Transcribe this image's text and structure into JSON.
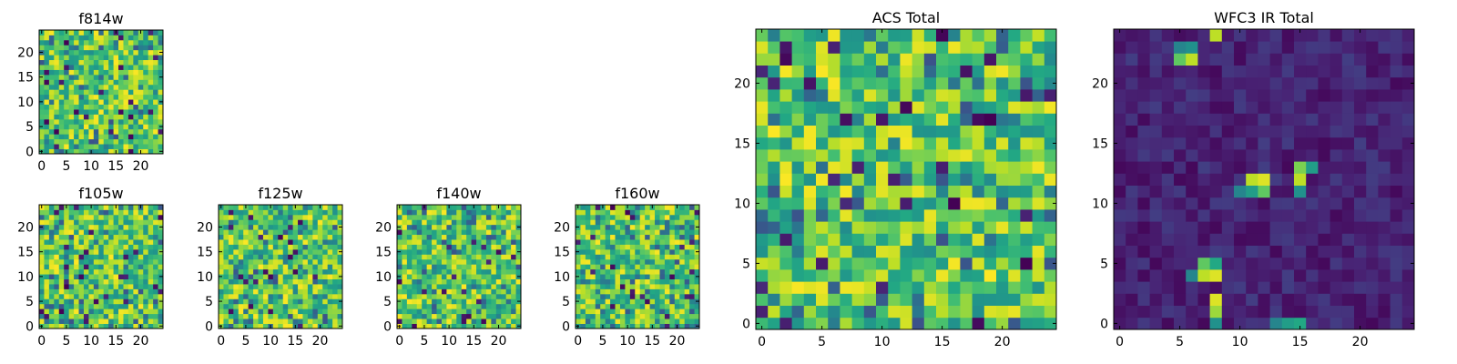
{
  "chart_data": [
    {
      "type": "heatmap",
      "title": "f814w",
      "xticks": [
        "0",
        "5",
        "10",
        "15",
        "20"
      ],
      "yticks": [
        "0",
        "5",
        "10",
        "15",
        "20"
      ],
      "range": [
        0,
        24
      ],
      "colormap": "viridis",
      "style": "mid",
      "seed": 11
    },
    {
      "type": "heatmap",
      "title": "f105w",
      "xticks": [
        "0",
        "5",
        "10",
        "15",
        "20"
      ],
      "yticks": [
        "0",
        "5",
        "10",
        "15",
        "20"
      ],
      "range": [
        0,
        24
      ],
      "colormap": "viridis",
      "style": "mid",
      "seed": 23
    },
    {
      "type": "heatmap",
      "title": "f125w",
      "xticks": [
        "0",
        "5",
        "10",
        "15",
        "20"
      ],
      "yticks": [
        "0",
        "5",
        "10",
        "15",
        "20"
      ],
      "range": [
        0,
        24
      ],
      "colormap": "viridis",
      "style": "mid",
      "seed": 37
    },
    {
      "type": "heatmap",
      "title": "f140w",
      "xticks": [
        "0",
        "5",
        "10",
        "15",
        "20"
      ],
      "yticks": [
        "0",
        "5",
        "10",
        "15",
        "20"
      ],
      "range": [
        0,
        24
      ],
      "colormap": "viridis",
      "style": "mid",
      "seed": 41
    },
    {
      "type": "heatmap",
      "title": "f160w",
      "xticks": [
        "0",
        "5",
        "10",
        "15",
        "20"
      ],
      "yticks": [
        "0",
        "5",
        "10",
        "15",
        "20"
      ],
      "range": [
        0,
        24
      ],
      "colormap": "viridis",
      "style": "mid",
      "seed": 53
    },
    {
      "type": "heatmap",
      "title": "ACS Total",
      "xticks": [
        "0",
        "5",
        "10",
        "15",
        "20"
      ],
      "yticks": [
        "0",
        "5",
        "10",
        "15",
        "20"
      ],
      "range": [
        0,
        24
      ],
      "colormap": "viridis",
      "style": "mid",
      "seed": 67
    },
    {
      "type": "heatmap",
      "title": "WFC3 IR Total",
      "xticks": [
        "0",
        "5",
        "10",
        "15",
        "20"
      ],
      "yticks": [
        "0",
        "5",
        "10",
        "15",
        "20"
      ],
      "range": [
        0,
        24
      ],
      "colormap": "viridis",
      "style": "dark",
      "seed": 79,
      "bright_cells": [
        {
          "x": 8,
          "y": 24,
          "v": 0.9
        },
        {
          "x": 5,
          "y": 22,
          "v": 0.75
        },
        {
          "x": 6,
          "y": 22,
          "v": 0.9
        },
        {
          "x": 5,
          "y": 23,
          "v": 0.45
        },
        {
          "x": 6,
          "y": 23,
          "v": 0.5
        },
        {
          "x": 11,
          "y": 12,
          "v": 0.9
        },
        {
          "x": 12,
          "y": 12,
          "v": 0.95
        },
        {
          "x": 12,
          "y": 11,
          "v": 0.75
        },
        {
          "x": 11,
          "y": 11,
          "v": 0.55
        },
        {
          "x": 10,
          "y": 11,
          "v": 0.45
        },
        {
          "x": 15,
          "y": 12,
          "v": 0.9
        },
        {
          "x": 15,
          "y": 13,
          "v": 0.8
        },
        {
          "x": 16,
          "y": 13,
          "v": 0.55
        },
        {
          "x": 15,
          "y": 11,
          "v": 0.5
        },
        {
          "x": 7,
          "y": 5,
          "v": 0.75
        },
        {
          "x": 7,
          "y": 4,
          "v": 0.9
        },
        {
          "x": 8,
          "y": 4,
          "v": 0.95
        },
        {
          "x": 8,
          "y": 5,
          "v": 0.6
        },
        {
          "x": 6,
          "y": 4,
          "v": 0.45
        },
        {
          "x": 8,
          "y": 2,
          "v": 0.95
        },
        {
          "x": 8,
          "y": 1,
          "v": 0.85
        },
        {
          "x": 8,
          "y": 0,
          "v": 0.5
        },
        {
          "x": 14,
          "y": 0,
          "v": 0.55
        },
        {
          "x": 15,
          "y": 0,
          "v": 0.6
        },
        {
          "x": 13,
          "y": 0,
          "v": 0.45
        }
      ]
    }
  ]
}
